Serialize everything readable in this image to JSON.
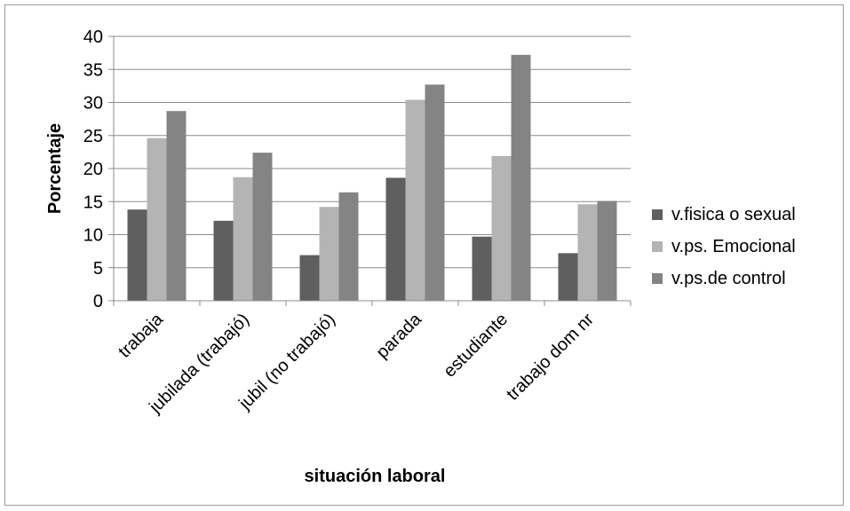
{
  "chart_data": {
    "type": "bar",
    "title": "",
    "xlabel": "situación laboral",
    "ylabel": "Porcentaje",
    "ylim": [
      0,
      40
    ],
    "yticks": [
      0,
      5,
      10,
      15,
      20,
      25,
      30,
      35,
      40
    ],
    "grid": true,
    "legend_position": "right",
    "categories": [
      "trabaja",
      "jubilada (trabajó)",
      "jubil (no trabajó)",
      "parada",
      "estudiante",
      "trabajo dom nr"
    ],
    "series": [
      {
        "name": "v.fisica o sexual",
        "color": "#5f5f5f",
        "values": [
          13.8,
          12.1,
          6.9,
          18.6,
          9.7,
          7.2
        ]
      },
      {
        "name": "v.ps. Emocional",
        "color": "#b4b4b4",
        "values": [
          24.6,
          18.7,
          14.2,
          30.4,
          21.9,
          14.6
        ]
      },
      {
        "name": "v.ps.de control",
        "color": "#848484",
        "values": [
          28.7,
          22.4,
          16.4,
          32.7,
          37.2,
          15.1
        ]
      }
    ]
  }
}
